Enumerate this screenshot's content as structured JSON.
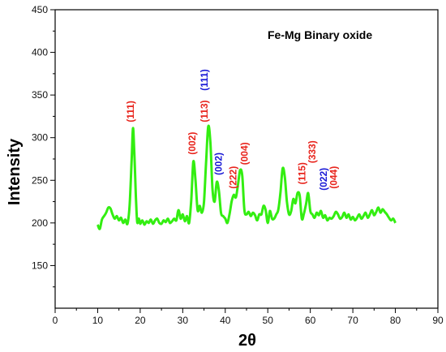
{
  "chart_data": {
    "type": "line",
    "title": "",
    "legend_text": "Fe-Mg Binary oxide",
    "xlabel": "2θ",
    "ylabel": "Intensity",
    "xlim": [
      0,
      90
    ],
    "ylim": [
      100,
      450
    ],
    "xticks": [
      0,
      10,
      20,
      30,
      40,
      50,
      60,
      70,
      80,
      90
    ],
    "yticks": [
      150,
      200,
      250,
      300,
      350,
      400,
      450
    ],
    "line_color": "#33ee11",
    "series": [
      {
        "x": [
          10,
          10.5,
          11,
          11.5,
          12,
          12.5,
          13,
          13.5,
          14,
          14.5,
          15,
          15.5,
          16,
          16.5,
          17,
          17.5,
          18,
          18.3,
          18.6,
          19,
          19.3,
          19.7,
          20,
          20.5,
          21,
          21.5,
          22,
          22.5,
          23,
          23.5,
          24,
          24.5,
          25,
          25.5,
          26,
          26.5,
          27,
          27.5,
          28,
          28.5,
          29,
          29.5,
          30,
          30.5,
          31,
          31.5,
          32,
          32.5,
          33,
          33.5,
          34,
          34.5,
          35,
          35.5,
          36,
          36.5,
          37,
          37.5,
          38,
          38.5,
          39,
          39.5,
          40,
          40.5,
          41,
          41.5,
          42,
          42.5,
          43,
          43.5,
          44,
          44.5,
          45,
          45.5,
          46,
          46.5,
          47,
          47.5,
          48,
          48.5,
          49,
          49.5,
          50,
          50.5,
          51,
          51.5,
          52,
          52.5,
          53,
          53.5,
          54,
          54.5,
          55,
          55.5,
          56,
          56.5,
          57,
          57.5,
          58,
          58.5,
          59,
          59.5,
          60,
          60.5,
          61,
          61.5,
          62,
          62.5,
          63,
          63.5,
          64,
          64.5,
          65,
          65.5,
          66,
          66.5,
          67,
          67.5,
          68,
          68.5,
          69,
          69.5,
          70,
          70.5,
          71,
          71.5,
          72,
          72.5,
          73,
          73.5,
          74,
          74.5,
          75,
          75.5,
          76,
          76.5,
          77,
          77.5,
          78,
          78.5,
          79,
          79.5,
          80
        ],
        "y": [
          198,
          193,
          204,
          208,
          212,
          218,
          217,
          210,
          205,
          208,
          203,
          206,
          200,
          204,
          199,
          220,
          275,
          311,
          285,
          230,
          201,
          205,
          199,
          203,
          198,
          202,
          200,
          204,
          199,
          203,
          205,
          200,
          199,
          203,
          201,
          205,
          200,
          202,
          205,
          203,
          215,
          205,
          210,
          202,
          208,
          200,
          226,
          272,
          250,
          215,
          220,
          212,
          225,
          272,
          313,
          295,
          240,
          225,
          248,
          238,
          212,
          208,
          205,
          200,
          210,
          225,
          233,
          230,
          245,
          262,
          255,
          215,
          210,
          213,
          208,
          212,
          209,
          203,
          210,
          210,
          220,
          215,
          200,
          214,
          205,
          205,
          210,
          216,
          237,
          264,
          254,
          225,
          210,
          214,
          228,
          223,
          235,
          232,
          205,
          211,
          222,
          235,
          214,
          210,
          206,
          212,
          209,
          214,
          206,
          209,
          203,
          206,
          205,
          208,
          213,
          210,
          205,
          207,
          212,
          206,
          210,
          204,
          207,
          203,
          206,
          210,
          205,
          208,
          212,
          206,
          210,
          215,
          209,
          213,
          218,
          212,
          216,
          213,
          210,
          206,
          203,
          205,
          200
        ]
      }
    ],
    "annotations": [
      {
        "text": "(111)",
        "x": 18.5,
        "y": 318,
        "color": "#e8241c"
      },
      {
        "text": "(002)",
        "x": 33.0,
        "y": 280,
        "color": "#e8241c"
      },
      {
        "text": "(113)",
        "x": 35.8,
        "y": 318,
        "color": "#e8241c"
      },
      {
        "text": "(111)",
        "x": 35.8,
        "y": 355,
        "color": "#1a1ad6"
      },
      {
        "text": "(002)",
        "x": 39.2,
        "y": 256,
        "color": "#1a1ad6"
      },
      {
        "text": "(222)",
        "x": 42.6,
        "y": 240,
        "color": "#e8241c"
      },
      {
        "text": "(004)",
        "x": 45.3,
        "y": 268,
        "color": "#e8241c"
      },
      {
        "text": "(115)",
        "x": 58.8,
        "y": 245,
        "color": "#e8241c"
      },
      {
        "text": "(333)",
        "x": 61.2,
        "y": 270,
        "color": "#e8241c"
      },
      {
        "text": "(022)",
        "x": 63.9,
        "y": 238,
        "color": "#1a1ad6"
      },
      {
        "text": "(044)",
        "x": 66.3,
        "y": 240,
        "color": "#e8241c"
      }
    ]
  }
}
